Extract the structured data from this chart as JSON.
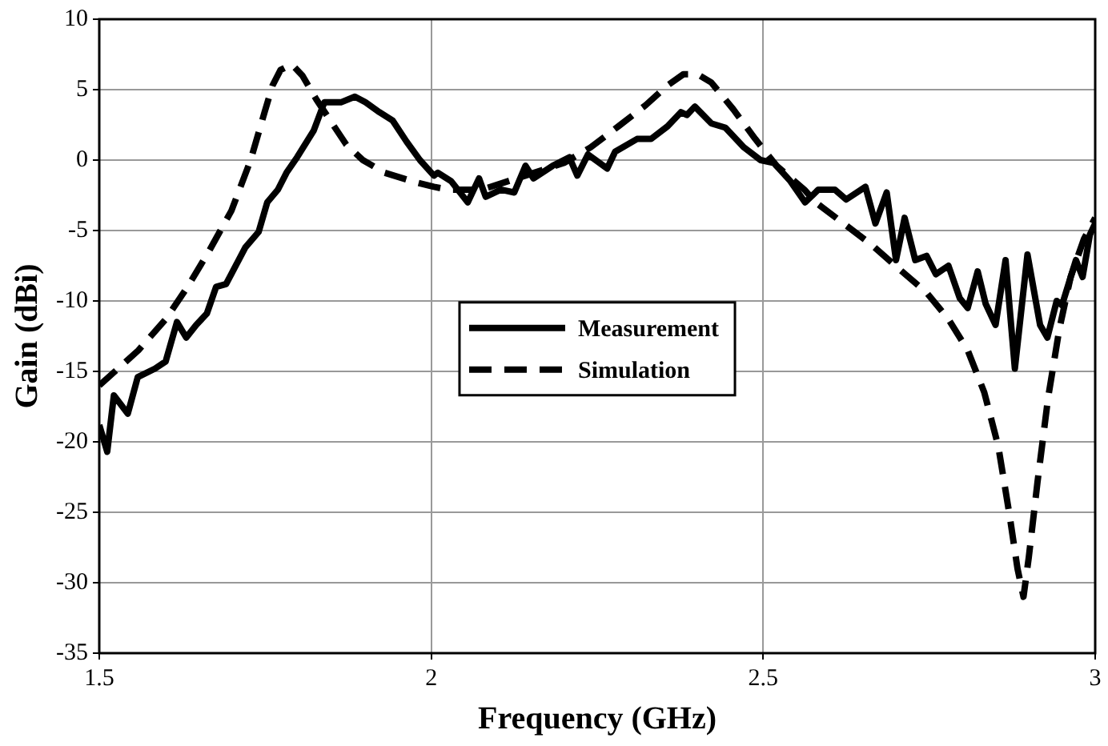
{
  "chart_data": {
    "type": "line",
    "xlabel": "Frequency (GHz)",
    "ylabel": "Gain (dBi)",
    "xlim": [
      1.5,
      3
    ],
    "xticks": [
      1.5,
      2,
      2.5,
      3
    ],
    "ylim": [
      -35,
      10
    ],
    "yticks": [
      -35,
      -30,
      -25,
      -20,
      -15,
      -10,
      -5,
      0,
      5,
      10
    ],
    "grid": true,
    "legend": "center",
    "marker": "none",
    "series": [
      {
        "name": "Measurement",
        "color": "#000000",
        "line_style": "solid",
        "x": [
          1.5,
          1.512,
          1.522,
          1.543,
          1.558,
          1.584,
          1.6,
          1.617,
          1.631,
          1.646,
          1.662,
          1.676,
          1.691,
          1.72,
          1.74,
          1.753,
          1.769,
          1.782,
          1.798,
          1.823,
          1.839,
          1.864,
          1.885,
          1.901,
          1.922,
          1.942,
          1.963,
          1.983,
          2.004,
          2.01,
          2.03,
          2.055,
          2.072,
          2.082,
          2.105,
          2.125,
          2.142,
          2.154,
          2.183,
          2.208,
          2.22,
          2.236,
          2.265,
          2.277,
          2.31,
          2.331,
          2.356,
          2.376,
          2.385,
          2.397,
          2.422,
          2.443,
          2.471,
          2.496,
          2.516,
          2.541,
          2.563,
          2.583,
          2.608,
          2.625,
          2.654,
          2.669,
          2.686,
          2.7,
          2.713,
          2.729,
          2.746,
          2.76,
          2.779,
          2.796,
          2.808,
          2.823,
          2.835,
          2.85,
          2.865,
          2.879,
          2.898,
          2.917,
          2.928,
          2.942,
          2.95,
          2.971,
          2.981,
          2.992,
          3.0
        ],
        "values": [
          -18.8,
          -20.7,
          -16.7,
          -18,
          -15.4,
          -14.8,
          -14.3,
          -11.5,
          -12.6,
          -11.7,
          -10.9,
          -9.0,
          -8.8,
          -6.2,
          -5.1,
          -3.0,
          -2.1,
          -0.9,
          0.2,
          2.1,
          4.1,
          4.1,
          4.5,
          4.1,
          3.4,
          2.8,
          1.3,
          0,
          -1.1,
          -0.9,
          -1.5,
          -3.0,
          -1.3,
          -2.6,
          -2.1,
          -2.3,
          -0.4,
          -1.3,
          -0.4,
          0.2,
          -1.1,
          0.4,
          -0.6,
          0.6,
          1.5,
          1.5,
          2.4,
          3.4,
          3.2,
          3.8,
          2.6,
          2.3,
          0.9,
          0,
          -0.2,
          -1.5,
          -3.0,
          -2.1,
          -2.1,
          -2.8,
          -1.9,
          -4.5,
          -2.3,
          -7.1,
          -4.1,
          -7.1,
          -6.8,
          -8.1,
          -7.5,
          -9.8,
          -10.5,
          -7.9,
          -10.2,
          -11.7,
          -7.1,
          -14.8,
          -6.7,
          -11.7,
          -12.6,
          -10.0,
          -10.3,
          -7.1,
          -8.3,
          -5.3,
          -4.5
        ]
      },
      {
        "name": "Simulation",
        "color": "#000000",
        "line_style": "dashed",
        "x": [
          1.5,
          1.559,
          1.6,
          1.633,
          1.666,
          1.699,
          1.728,
          1.749,
          1.761,
          1.773,
          1.79,
          1.806,
          1.827,
          1.848,
          1.872,
          1.897,
          1.93,
          1.971,
          2.004,
          2.026,
          2.076,
          2.142,
          2.2,
          2.24,
          2.282,
          2.323,
          2.356,
          2.38,
          2.401,
          2.422,
          2.455,
          2.488,
          2.52,
          2.562,
          2.579,
          2.621,
          2.663,
          2.704,
          2.746,
          2.779,
          2.808,
          2.833,
          2.854,
          2.871,
          2.883,
          2.892,
          2.9,
          2.913,
          2.929,
          2.946,
          2.963,
          2.983,
          3.0
        ],
        "values": [
          -16.0,
          -13.5,
          -11.3,
          -9.0,
          -6.4,
          -3.6,
          0,
          3.4,
          5.3,
          6.4,
          6.8,
          6.0,
          4.3,
          2.8,
          1.1,
          0,
          -0.9,
          -1.5,
          -1.9,
          -2.1,
          -2.1,
          -1.1,
          -0.2,
          0.9,
          2.4,
          3.9,
          5.3,
          6.1,
          6.1,
          5.5,
          3.6,
          1.5,
          -0.4,
          -2.1,
          -3.0,
          -4.5,
          -6.0,
          -7.7,
          -9.4,
          -11.3,
          -13.5,
          -16.5,
          -20.3,
          -25.2,
          -29.0,
          -31.0,
          -28.2,
          -22.9,
          -16.9,
          -12.0,
          -8.3,
          -5.6,
          -4.1
        ]
      }
    ]
  }
}
